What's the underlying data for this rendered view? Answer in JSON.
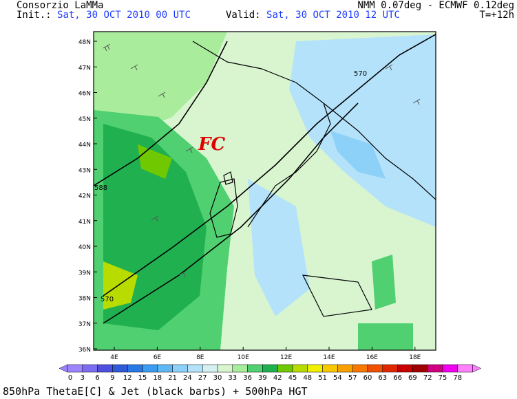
{
  "header": {
    "source": "Consorzio LaMMa",
    "init_label": "Init.:",
    "init_value": "Sat, 30 OCT 2010   00 UTC",
    "valid_label": "Valid:",
    "valid_value": "Sat, 30 OCT 2010   12 UTC",
    "model": "NMM 0.07deg - ECMWF 0.12deg",
    "lead": "T=+12h"
  },
  "map": {
    "lat_labels": [
      "48N",
      "47N",
      "46N",
      "45N",
      "44N",
      "43N",
      "42N",
      "41N",
      "40N",
      "39N",
      "38N",
      "37N",
      "36N"
    ],
    "lon_labels": [
      "4E",
      "6E",
      "8E",
      "10E",
      "12E",
      "14E",
      "16E",
      "18E"
    ],
    "front_label": "FC",
    "contour_label": "570",
    "contour_label_left": "588"
  },
  "legend": {
    "values": [
      "0",
      "3",
      "6",
      "9",
      "12",
      "15",
      "18",
      "21",
      "24",
      "27",
      "30",
      "33",
      "36",
      "39",
      "42",
      "45",
      "48",
      "51",
      "54",
      "57",
      "60",
      "63",
      "66",
      "69",
      "72",
      "75",
      "78"
    ],
    "colors": [
      "#9c84ff",
      "#7c6cf0",
      "#4f4fe0",
      "#2f5ad8",
      "#2878e6",
      "#3c9cf0",
      "#5fb8f4",
      "#8dd0f8",
      "#b4e2fa",
      "#d4f0f2",
      "#d8f5d0",
      "#a8ec9c",
      "#50d070",
      "#20b050",
      "#70c800",
      "#b8dc00",
      "#f0f000",
      "#f8c800",
      "#f8a000",
      "#f87800",
      "#f05000",
      "#e02800",
      "#c80000",
      "#a00000",
      "#d00080",
      "#f000f0",
      "#ff80ff"
    ]
  },
  "footer": "850hPa ThetaE[C] & Jet (black barbs) + 500hPa HGT"
}
